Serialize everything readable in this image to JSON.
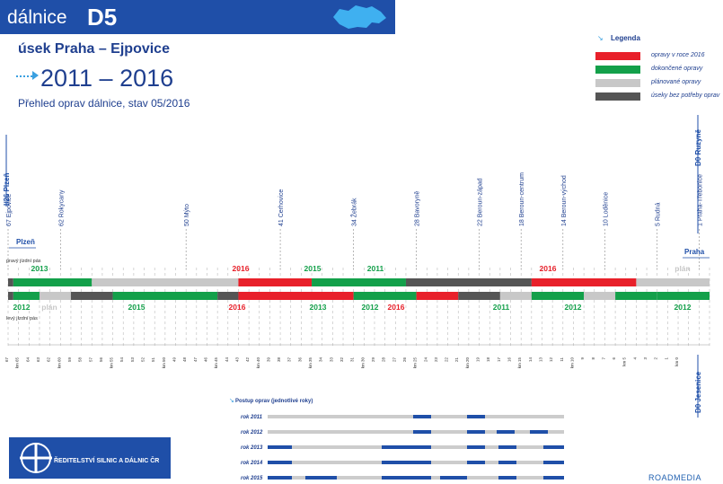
{
  "header": {
    "prefix": "dálnice",
    "road": "D5"
  },
  "section": "úsek Praha – Ejpovice",
  "period": "2011 – 2016",
  "subtitle": "Přehled oprav dálnice, stav 05/2016",
  "legend": {
    "title": "Legenda",
    "items": [
      {
        "label": "opravy v roce 2016",
        "color": "#e8202a"
      },
      {
        "label": "dokončené opravy",
        "color": "#13a04a"
      },
      {
        "label": "plánované opravy",
        "color": "#c8c8c8"
      },
      {
        "label": "úseky bez potřeby oprav",
        "color": "#555555"
      }
    ]
  },
  "exits": [
    "67 Ejpovice",
    "62 Rokycany",
    "50 Mýto",
    "41 Cerhovice",
    "34 Žebrák",
    "28 Bavoryně",
    "22 Beroun-západ",
    "18 Beroun-centrum",
    "14 Beroun-východ",
    "10 Loděnice",
    "5 Rudná",
    "1 Praha-Třebonice"
  ],
  "directions": {
    "west": "I/26 Plzeň",
    "east": "D0 Ruzyně",
    "east_low": "D0 Jesenice",
    "plzen": "Plzeň",
    "praha": "Praha"
  },
  "lanes": {
    "right": "pravý jízdní pás",
    "left": "levý jízdní pás"
  },
  "right_lane_labels": [
    "2013",
    "2016",
    "2015",
    "2011",
    "2016",
    "plán"
  ],
  "left_lane_labels": [
    "2012",
    "plán",
    "2015",
    "2016",
    "2013",
    "2012",
    "2016",
    "2011",
    "2012",
    "2012"
  ],
  "km_ticks": [
    "67",
    "km 65",
    "64",
    "63",
    "62",
    "km 60",
    "59",
    "58",
    "57",
    "56",
    "km 55",
    "54",
    "53",
    "52",
    "51",
    "km 50",
    "49",
    "48",
    "47",
    "46",
    "km 45",
    "44",
    "43",
    "42",
    "km 40",
    "39",
    "38",
    "37",
    "36",
    "km 35",
    "34",
    "33",
    "32",
    "31",
    "km 30",
    "29",
    "28",
    "27",
    "26",
    "km 25",
    "24",
    "23",
    "22",
    "21",
    "km 20",
    "19",
    "18",
    "17",
    "16",
    "km 15",
    "14",
    "13",
    "12",
    "11",
    "km 10",
    "9",
    "8",
    "7",
    "6",
    "km 5",
    "4",
    "3",
    "2",
    "1",
    "km 0"
  ],
  "progress": {
    "title": "Postup oprav (jednotlivé roky)",
    "years": [
      "rok 2011",
      "rok 2012",
      "rok 2013",
      "rok 2014",
      "rok 2015"
    ]
  },
  "org": "ŘEDITELSTVÍ SILNIC A DÁLNIC ČR",
  "brand": "ROADMEDIA"
}
